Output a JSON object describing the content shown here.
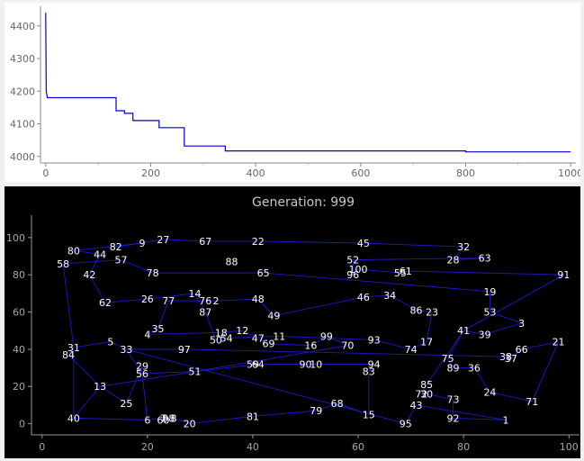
{
  "chart_data": [
    {
      "type": "line",
      "title": "",
      "xlabel": "",
      "ylabel": "",
      "xlim": [
        -10,
        1010
      ],
      "ylim": [
        3980,
        4460
      ],
      "x_ticks": [
        "0",
        "200",
        "400",
        "600",
        "800",
        "1000"
      ],
      "y_ticks": [
        "4000",
        "4100",
        "4200",
        "4300",
        "4400"
      ],
      "grid": false,
      "line_color": "#0000cc",
      "series": [
        {
          "step": true,
          "points": [
            [
              0,
              4440
            ],
            [
              1,
              4200
            ],
            [
              3,
              4180
            ],
            [
              134,
              4180
            ],
            [
              134,
              4140
            ],
            [
              150,
              4140
            ],
            [
              150,
              4132
            ],
            [
              166,
              4132
            ],
            [
              166,
              4110
            ],
            [
              216,
              4110
            ],
            [
              216,
              4088
            ],
            [
              264,
              4088
            ],
            [
              264,
              4032
            ],
            [
              342,
              4032
            ],
            [
              342,
              4017
            ],
            [
              800,
              4017
            ],
            [
              800,
              4014
            ],
            [
              1000,
              4014
            ]
          ]
        }
      ]
    },
    {
      "type": "scatter",
      "title": "Generation: 999",
      "xlabel": "",
      "ylabel": "",
      "xlim": [
        -2,
        102
      ],
      "ylim": [
        -6,
        112
      ],
      "x_ticks": [
        "0",
        "20",
        "40",
        "60",
        "80",
        "100"
      ],
      "y_ticks": [
        "0",
        "20",
        "40",
        "60",
        "80",
        "100"
      ],
      "grid": false,
      "background": "#000000",
      "route_color": "#1a1acc",
      "cities": [
        {
          "id": 1,
          "x": 88,
          "y": 2
        },
        {
          "id": 2,
          "x": 33,
          "y": 66
        },
        {
          "id": 3,
          "x": 91,
          "y": 54
        },
        {
          "id": 4,
          "x": 20,
          "y": 48
        },
        {
          "id": 5,
          "x": 13,
          "y": 44
        },
        {
          "id": 6,
          "x": 20,
          "y": 2
        },
        {
          "id": 7,
          "x": 23,
          "y": 3
        },
        {
          "id": 8,
          "x": 25,
          "y": 3
        },
        {
          "id": 9,
          "x": 19,
          "y": 97
        },
        {
          "id": 10,
          "x": 52,
          "y": 32
        },
        {
          "id": 11,
          "x": 45,
          "y": 47
        },
        {
          "id": 12,
          "x": 38,
          "y": 50
        },
        {
          "id": 13,
          "x": 11,
          "y": 20
        },
        {
          "id": 14,
          "x": 29,
          "y": 70
        },
        {
          "id": 15,
          "x": 62,
          "y": 5
        },
        {
          "id": 16,
          "x": 51,
          "y": 42
        },
        {
          "id": 17,
          "x": 73,
          "y": 44
        },
        {
          "id": 18,
          "x": 34,
          "y": 49
        },
        {
          "id": 19,
          "x": 85,
          "y": 71
        },
        {
          "id": 20,
          "x": 28,
          "y": 0
        },
        {
          "id": 21,
          "x": 98,
          "y": 44
        },
        {
          "id": 22,
          "x": 41,
          "y": 98
        },
        {
          "id": 23,
          "x": 74,
          "y": 60
        },
        {
          "id": 24,
          "x": 85,
          "y": 17
        },
        {
          "id": 25,
          "x": 16,
          "y": 11
        },
        {
          "id": 26,
          "x": 20,
          "y": 67
        },
        {
          "id": 27,
          "x": 23,
          "y": 99
        },
        {
          "id": 28,
          "x": 78,
          "y": 88
        },
        {
          "id": 29,
          "x": 19,
          "y": 31
        },
        {
          "id": 30,
          "x": 73,
          "y": 16
        },
        {
          "id": 31,
          "x": 6,
          "y": 41
        },
        {
          "id": 32,
          "x": 80,
          "y": 95
        },
        {
          "id": 33,
          "x": 16,
          "y": 40
        },
        {
          "id": 34,
          "x": 66,
          "y": 69
        },
        {
          "id": 35,
          "x": 22,
          "y": 51
        },
        {
          "id": 36,
          "x": 82,
          "y": 30
        },
        {
          "id": 37,
          "x": 89,
          "y": 35
        },
        {
          "id": 38,
          "x": 88,
          "y": 36
        },
        {
          "id": 39,
          "x": 84,
          "y": 48
        },
        {
          "id": 40,
          "x": 6,
          "y": 3
        },
        {
          "id": 41,
          "x": 80,
          "y": 50
        },
        {
          "id": 42,
          "x": 9,
          "y": 80
        },
        {
          "id": 43,
          "x": 71,
          "y": 10
        },
        {
          "id": 44,
          "x": 11,
          "y": 91
        },
        {
          "id": 45,
          "x": 61,
          "y": 97
        },
        {
          "id": 46,
          "x": 61,
          "y": 68
        },
        {
          "id": 47,
          "x": 41,
          "y": 46
        },
        {
          "id": 48,
          "x": 41,
          "y": 67
        },
        {
          "id": 49,
          "x": 44,
          "y": 58
        },
        {
          "id": 50,
          "x": 33,
          "y": 45
        },
        {
          "id": 51,
          "x": 29,
          "y": 28
        },
        {
          "id": 52,
          "x": 59,
          "y": 88
        },
        {
          "id": 53,
          "x": 85,
          "y": 60
        },
        {
          "id": 54,
          "x": 35,
          "y": 46
        },
        {
          "id": 55,
          "x": 68,
          "y": 81
        },
        {
          "id": 56,
          "x": 19,
          "y": 27
        },
        {
          "id": 57,
          "x": 15,
          "y": 88
        },
        {
          "id": 58,
          "x": 4,
          "y": 86
        },
        {
          "id": 59,
          "x": 40,
          "y": 32
        },
        {
          "id": 60,
          "x": 23,
          "y": 2
        },
        {
          "id": 61,
          "x": 69,
          "y": 82
        },
        {
          "id": 62,
          "x": 12,
          "y": 65
        },
        {
          "id": 63,
          "x": 84,
          "y": 89
        },
        {
          "id": 64,
          "x": 41,
          "y": 32
        },
        {
          "id": 65,
          "x": 42,
          "y": 81
        },
        {
          "id": 66,
          "x": 91,
          "y": 40
        },
        {
          "id": 67,
          "x": 31,
          "y": 98
        },
        {
          "id": 68,
          "x": 56,
          "y": 11
        },
        {
          "id": 69,
          "x": 43,
          "y": 43
        },
        {
          "id": 70,
          "x": 58,
          "y": 42
        },
        {
          "id": 71,
          "x": 93,
          "y": 12
        },
        {
          "id": 72,
          "x": 72,
          "y": 16
        },
        {
          "id": 73,
          "x": 78,
          "y": 13
        },
        {
          "id": 74,
          "x": 70,
          "y": 40
        },
        {
          "id": 75,
          "x": 77,
          "y": 35
        },
        {
          "id": 76,
          "x": 31,
          "y": 66
        },
        {
          "id": 77,
          "x": 24,
          "y": 66
        },
        {
          "id": 78,
          "x": 21,
          "y": 81
        },
        {
          "id": 79,
          "x": 52,
          "y": 7
        },
        {
          "id": 80,
          "x": 6,
          "y": 93
        },
        {
          "id": 81,
          "x": 40,
          "y": 4
        },
        {
          "id": 82,
          "x": 14,
          "y": 95
        },
        {
          "id": 83,
          "x": 62,
          "y": 28
        },
        {
          "id": 84,
          "x": 5,
          "y": 37
        },
        {
          "id": 85,
          "x": 73,
          "y": 21
        },
        {
          "id": 86,
          "x": 71,
          "y": 61
        },
        {
          "id": 87,
          "x": 31,
          "y": 60
        },
        {
          "id": 88,
          "x": 36,
          "y": 87
        },
        {
          "id": 89,
          "x": 78,
          "y": 30
        },
        {
          "id": 90,
          "x": 50,
          "y": 32
        },
        {
          "id": 91,
          "x": 99,
          "y": 80
        },
        {
          "id": 92,
          "x": 78,
          "y": 3
        },
        {
          "id": 93,
          "x": 63,
          "y": 45
        },
        {
          "id": 94,
          "x": 63,
          "y": 32
        },
        {
          "id": 95,
          "x": 69,
          "y": 0
        },
        {
          "id": 96,
          "x": 59,
          "y": 80
        },
        {
          "id": 97,
          "x": 27,
          "y": 40
        },
        {
          "id": 98,
          "x": 24,
          "y": 3
        },
        {
          "id": 99,
          "x": 54,
          "y": 47
        },
        {
          "id": 100,
          "x": 60,
          "y": 83
        }
      ],
      "route": [
        58,
        57,
        78,
        65,
        19,
        53,
        3,
        39,
        41,
        75,
        89,
        36,
        24,
        71,
        21,
        66,
        37,
        38,
        97,
        33,
        5,
        31,
        84,
        13,
        25,
        29,
        56,
        51,
        64,
        59,
        90,
        10,
        94,
        83,
        15,
        68,
        79,
        81,
        20,
        8,
        98,
        60,
        7,
        6,
        40,
        13,
        51,
        70,
        99,
        16,
        69,
        47,
        12,
        18,
        4,
        35,
        77,
        76,
        2,
        48,
        49,
        46,
        34,
        86,
        23,
        17,
        74,
        93,
        11,
        54,
        50,
        87,
        14,
        26,
        62,
        42,
        44,
        80,
        9,
        82,
        27,
        67,
        22,
        45,
        32,
        28,
        63,
        52,
        96,
        100,
        55,
        61,
        91,
        41,
        85,
        72,
        30,
        73,
        92,
        1,
        43,
        95,
        33,
        56,
        6,
        40,
        31,
        58
      ]
    }
  ]
}
